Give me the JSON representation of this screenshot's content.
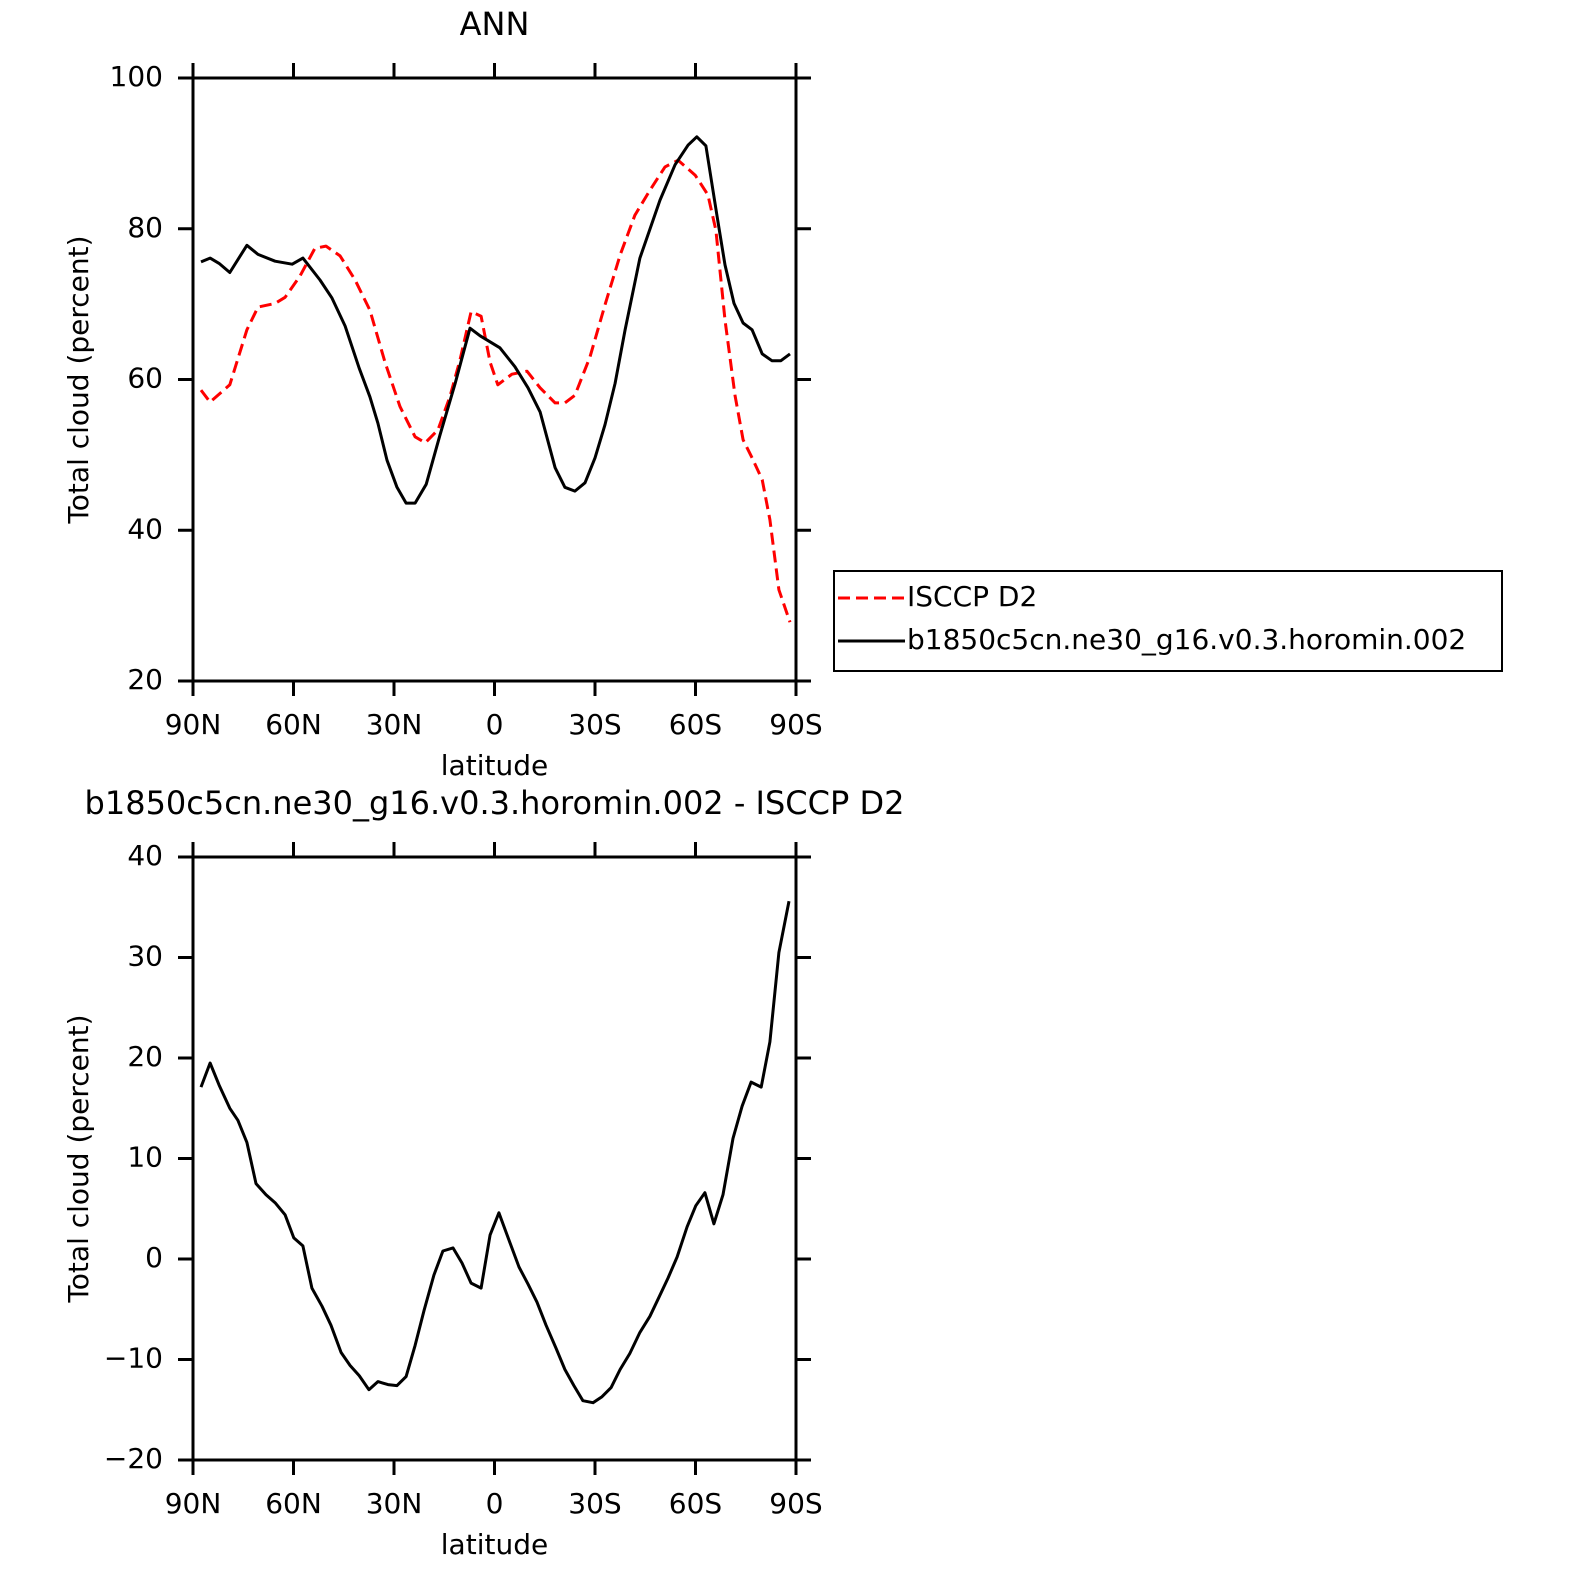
{
  "chart_data": [
    {
      "type": "line",
      "title": "ANN",
      "xlabel": "latitude",
      "ylabel": "Total cloud (percent)",
      "xlim": [
        90,
        -90
      ],
      "ylim": [
        20,
        100
      ],
      "xticks": [
        {
          "value": 90,
          "label": "90N"
        },
        {
          "value": 60,
          "label": "60N"
        },
        {
          "value": 30,
          "label": "30N"
        },
        0,
        {
          "value": -30,
          "label": "30S"
        },
        {
          "value": -60,
          "label": "60S"
        },
        {
          "value": -90,
          "label": "90S"
        }
      ],
      "yticks": [
        20,
        40,
        60,
        80,
        100
      ],
      "legend": "right",
      "series": [
        {
          "name": "ISCCP D2",
          "color": "#ff0000",
          "linestyle": "dashed",
          "x": [
            87.6,
            84.9,
            79.0,
            73.9,
            70.6,
            65.5,
            62.5,
            58.1,
            53.6,
            50.3,
            46.1,
            41.6,
            37.2,
            32.7,
            28.2,
            23.7,
            20.7,
            16.9,
            13.3,
            10.3,
            7.0,
            4.0,
            1.3,
            -1.0,
            -5.2,
            -9.7,
            -13.6,
            -18.1,
            -21.0,
            -24.0,
            -28.5,
            -33.0,
            -37.5,
            -41.9,
            -46.4,
            -50.9,
            -54.8,
            -59.9,
            -63.7,
            -66.1,
            -68.8,
            -71.8,
            -74.2,
            -76.9,
            -79.9,
            -82.2,
            -84.9,
            -88.2
          ],
          "values": [
            58.6,
            57.0,
            59.3,
            66.6,
            69.6,
            70.1,
            70.9,
            73.7,
            77.4,
            77.7,
            76.4,
            73.2,
            69.2,
            62.3,
            56.4,
            52.4,
            51.6,
            53.3,
            57.7,
            62.6,
            69.0,
            68.4,
            62.3,
            59.3,
            60.7,
            61.1,
            58.9,
            56.9,
            56.9,
            57.9,
            63.0,
            69.9,
            76.5,
            81.8,
            85.1,
            88.2,
            89.1,
            87.1,
            84.5,
            79.8,
            67.9,
            57.9,
            52.0,
            49.6,
            46.7,
            41.4,
            32.1,
            27.8
          ]
        },
        {
          "name": "b1850c5cn.ne30_g16.v0.3.horomin.002",
          "color": "#000000",
          "linestyle": "solid",
          "x": [
            87.6,
            84.9,
            82.2,
            79.0,
            73.9,
            70.6,
            65.5,
            60.4,
            57.2,
            52.1,
            48.5,
            44.6,
            40.4,
            37.2,
            34.8,
            32.1,
            29.1,
            26.4,
            23.7,
            20.4,
            16.3,
            11.8,
            7.3,
            4.3,
            -1.6,
            -6.1,
            -10.0,
            -13.6,
            -18.1,
            -21.0,
            -24.0,
            -27.0,
            -30.0,
            -33.0,
            -36.0,
            -39.0,
            -43.4,
            -49.4,
            -53.9,
            -57.8,
            -60.4,
            -63.1,
            -66.4,
            -68.8,
            -71.5,
            -74.2,
            -76.9,
            -79.9,
            -82.8,
            -85.5,
            -88.2
          ],
          "values": [
            75.6,
            76.1,
            75.4,
            74.2,
            77.8,
            76.6,
            75.7,
            75.3,
            76.1,
            73.2,
            70.8,
            67.1,
            61.5,
            57.7,
            54.2,
            49.3,
            45.7,
            43.6,
            43.6,
            46.1,
            52.6,
            59.4,
            66.8,
            65.8,
            64.2,
            61.7,
            58.9,
            55.7,
            48.3,
            45.7,
            45.2,
            46.3,
            49.6,
            54.0,
            59.5,
            66.6,
            76.1,
            83.8,
            88.5,
            91.1,
            92.2,
            91.0,
            81.8,
            75.2,
            70.1,
            67.5,
            66.6,
            63.4,
            62.5,
            62.5,
            63.4
          ]
        }
      ]
    },
    {
      "type": "line",
      "title": "b1850c5cn.ne30_g16.v0.3.horomin.002 - ISCCP D2",
      "xlabel": "latitude",
      "ylabel": "Total cloud (percent)",
      "xlim": [
        90,
        -90
      ],
      "ylim": [
        -20,
        40
      ],
      "xticks": [
        {
          "value": 90,
          "label": "90N"
        },
        {
          "value": 60,
          "label": "60N"
        },
        {
          "value": 30,
          "label": "30N"
        },
        0,
        {
          "value": -30,
          "label": "30S"
        },
        {
          "value": -60,
          "label": "60S"
        },
        {
          "value": -90,
          "label": "90S"
        }
      ],
      "yticks": [
        {
          "value": -20,
          "label": "−20"
        },
        {
          "value": -10,
          "label": "−10"
        },
        0,
        10,
        20,
        30,
        40
      ],
      "series": [
        {
          "color": "#000000",
          "linestyle": "solid",
          "x": [
            87.6,
            84.9,
            82.2,
            79.0,
            76.6,
            73.9,
            71.2,
            68.2,
            65.5,
            62.5,
            59.9,
            57.2,
            54.5,
            51.5,
            48.8,
            45.8,
            43.1,
            40.4,
            37.5,
            34.8,
            31.8,
            29.1,
            26.4,
            23.7,
            21.0,
            18.1,
            15.4,
            12.4,
            9.7,
            7.0,
            4.0,
            1.3,
            -1.3,
            -4.3,
            -7.3,
            -10.0,
            -12.7,
            -15.4,
            -18.4,
            -21.0,
            -23.7,
            -26.4,
            -29.4,
            -32.1,
            -34.8,
            -37.5,
            -40.4,
            -43.4,
            -46.4,
            -49.1,
            -51.8,
            -54.5,
            -57.5,
            -60.1,
            -62.8,
            -65.5,
            -68.2,
            -71.2,
            -73.9,
            -76.6,
            -79.6,
            -82.2,
            -84.9,
            -87.9
          ],
          "values": [
            17.1,
            19.5,
            17.3,
            15.0,
            13.8,
            11.6,
            7.5,
            6.4,
            5.6,
            4.4,
            2.1,
            1.3,
            -2.9,
            -4.7,
            -6.6,
            -9.3,
            -10.6,
            -11.6,
            -13.0,
            -12.2,
            -12.5,
            -12.6,
            -11.7,
            -8.6,
            -5.1,
            -1.6,
            0.8,
            1.1,
            -0.4,
            -2.4,
            -2.9,
            2.4,
            4.6,
            1.9,
            -0.8,
            -2.5,
            -4.3,
            -6.6,
            -8.9,
            -11.0,
            -12.6,
            -14.1,
            -14.3,
            -13.7,
            -12.8,
            -11.0,
            -9.4,
            -7.3,
            -5.7,
            -3.8,
            -1.9,
            0.2,
            3.2,
            5.3,
            6.6,
            3.5,
            6.4,
            12.0,
            15.2,
            17.6,
            17.1,
            21.6,
            30.5,
            35.6
          ]
        }
      ]
    }
  ]
}
